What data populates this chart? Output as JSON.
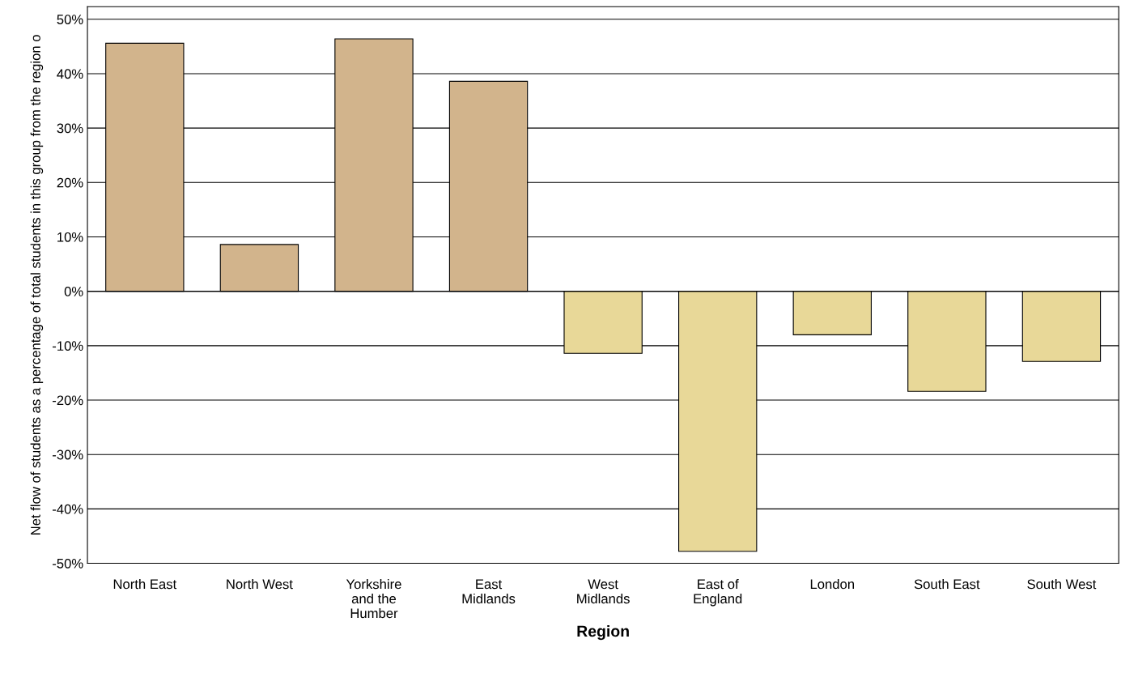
{
  "chart_data": {
    "type": "bar",
    "xlabel": "Region",
    "ylabel": "Net flow of students as a percentage of total students in this group from the region o",
    "categories": [
      "North East",
      "North West",
      "Yorkshire\nand the\nHumber",
      "East\nMidlands",
      "West\nMidlands",
      "East of\nEngland",
      "London",
      "South East",
      "South West"
    ],
    "values": [
      45.6,
      8.6,
      46.4,
      38.6,
      -11.4,
      -47.8,
      -8.0,
      -18.4,
      -12.9
    ],
    "colors": [
      "#d2b48c",
      "#d2b48c",
      "#d2b48c",
      "#d2b48c",
      "#e8d898",
      "#e8d898",
      "#e8d898",
      "#e8d898",
      "#e8d898"
    ],
    "ylim": [
      -50,
      52.3
    ],
    "yticks": [
      {
        "value": -50,
        "label": "-50%"
      },
      {
        "value": -40,
        "label": "-40%"
      },
      {
        "value": -30,
        "label": "-30%"
      },
      {
        "value": -20,
        "label": "-20%"
      },
      {
        "value": -10,
        "label": "-10%"
      },
      {
        "value": 0,
        "label": "0%"
      },
      {
        "value": 10,
        "label": "10%"
      },
      {
        "value": 20,
        "label": "20%"
      },
      {
        "value": 30,
        "label": "30%"
      },
      {
        "value": 40,
        "label": "40%"
      },
      {
        "value": 50,
        "label": "50%"
      }
    ],
    "grid": "y",
    "legend": false
  }
}
